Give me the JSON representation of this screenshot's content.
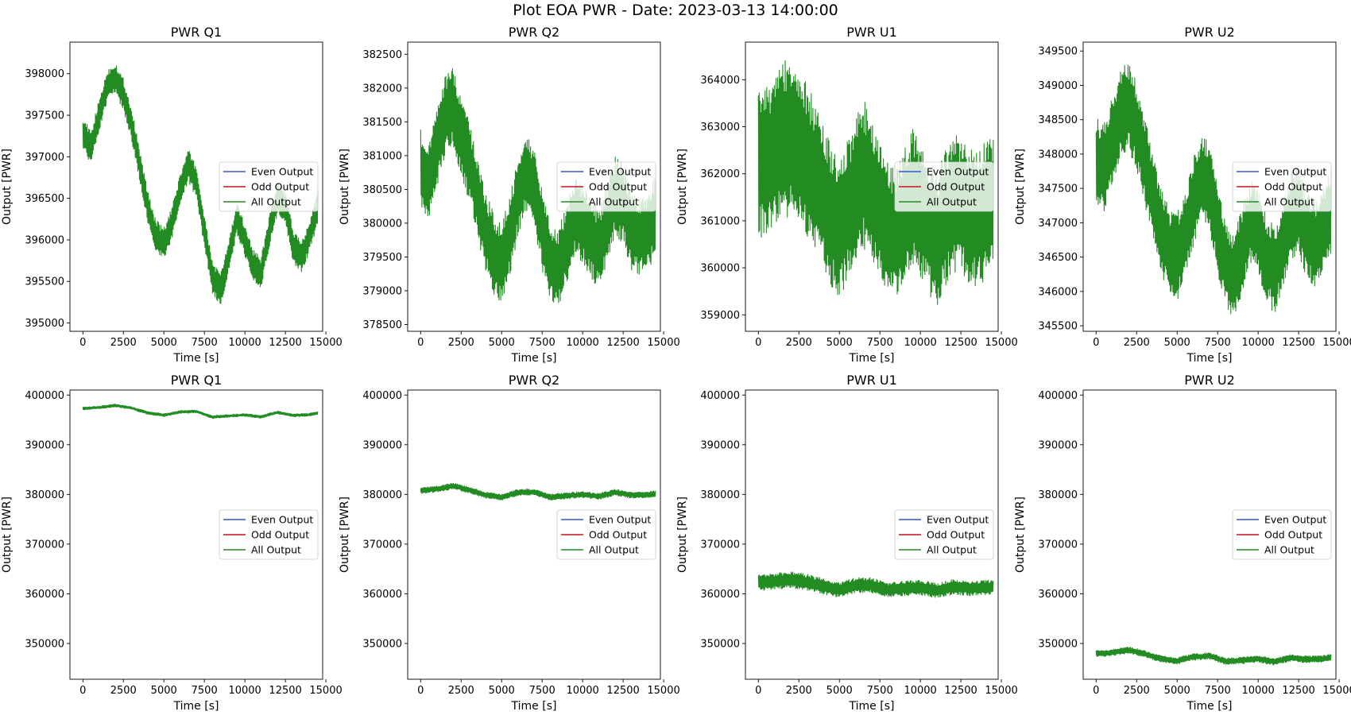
{
  "figure": {
    "title": "Plot EOA PWR - Date: 2023-03-13 14:00:00"
  },
  "colors": {
    "even": "#3355cc",
    "odd": "#cc1122",
    "all": "#228b22"
  },
  "chart_data": [
    {
      "type": "line",
      "title": "PWR Q1",
      "xlabel": "Time [s]",
      "ylabel": "Output [PWR]",
      "xlim": [
        -800,
        14800
      ],
      "ylim": [
        394900,
        398380
      ],
      "xticks": [
        0,
        2500,
        5000,
        7500,
        10000,
        12500,
        15000
      ],
      "yticks": [
        395000,
        395500,
        396000,
        396500,
        397000,
        397500,
        398000
      ],
      "legend": [
        "Even Output",
        "Odd Output",
        "All Output"
      ],
      "legend_position": "center-right",
      "grid": false,
      "band": {
        "x": [
          0,
          500,
          1000,
          1500,
          2000,
          2500,
          3000,
          3500,
          4000,
          4500,
          5000,
          5500,
          6000,
          6500,
          7000,
          7500,
          8000,
          8500,
          9000,
          9500,
          10000,
          10500,
          11000,
          11500,
          12000,
          12500,
          13000,
          13500,
          14000,
          14500
        ],
        "center": [
          397300,
          397100,
          397500,
          397850,
          397950,
          397750,
          397400,
          396900,
          396400,
          396050,
          395950,
          396200,
          396600,
          396900,
          396700,
          396100,
          395550,
          395400,
          395800,
          396250,
          396000,
          395700,
          395600,
          396100,
          396500,
          396400,
          395900,
          395800,
          396050,
          396400
        ],
        "halfwidth": [
          200,
          200,
          200,
          200,
          200,
          200,
          200,
          200,
          200,
          200,
          200,
          200,
          200,
          200,
          200,
          200,
          200,
          200,
          200,
          200,
          200,
          200,
          200,
          200,
          200,
          200,
          200,
          200,
          200,
          200
        ]
      }
    },
    {
      "type": "line",
      "title": "PWR Q2",
      "xlabel": "Time [s]",
      "ylabel": "Output [PWR]",
      "xlim": [
        -800,
        14800
      ],
      "ylim": [
        378400,
        382680
      ],
      "xticks": [
        0,
        2500,
        5000,
        7500,
        10000,
        12500,
        15000
      ],
      "yticks": [
        378500,
        379000,
        379500,
        380000,
        380500,
        381000,
        381500,
        382000,
        382500
      ],
      "legend": [
        "Even Output",
        "Odd Output",
        "All Output"
      ],
      "legend_position": "center-right",
      "grid": false,
      "band": {
        "x": [
          0,
          500,
          1000,
          1500,
          2000,
          2500,
          3000,
          3500,
          4000,
          4500,
          5000,
          5500,
          6000,
          6500,
          7000,
          7500,
          8000,
          8500,
          9000,
          9500,
          10000,
          10500,
          11000,
          11500,
          12000,
          12500,
          13000,
          13500,
          14000,
          14500
        ],
        "center": [
          380800,
          380600,
          381100,
          381600,
          381700,
          381300,
          380900,
          380400,
          379900,
          379550,
          379400,
          379800,
          380400,
          380800,
          380500,
          379900,
          379450,
          379300,
          379700,
          380100,
          380000,
          379800,
          379600,
          380000,
          380400,
          380300,
          379900,
          379800,
          379900,
          380100
        ],
        "halfwidth": [
          600,
          600,
          600,
          600,
          600,
          600,
          600,
          600,
          600,
          600,
          600,
          600,
          600,
          600,
          600,
          600,
          600,
          600,
          600,
          600,
          600,
          600,
          600,
          600,
          600,
          600,
          600,
          600,
          600,
          600
        ]
      }
    },
    {
      "type": "line",
      "title": "PWR U1",
      "xlabel": "Time [s]",
      "ylabel": "Output [PWR]",
      "xlim": [
        -800,
        14800
      ],
      "ylim": [
        358650,
        364800
      ],
      "xticks": [
        0,
        2500,
        5000,
        7500,
        10000,
        12500,
        15000
      ],
      "yticks": [
        359000,
        360000,
        361000,
        362000,
        363000,
        364000
      ],
      "legend": [
        "Even Output",
        "Odd Output",
        "All Output"
      ],
      "legend_position": "center-right",
      "grid": false,
      "band": {
        "x": [
          0,
          500,
          1000,
          1500,
          2000,
          2500,
          3000,
          3500,
          4000,
          4500,
          5000,
          5500,
          6000,
          6500,
          7000,
          7500,
          8000,
          8500,
          9000,
          9500,
          10000,
          10500,
          11000,
          11500,
          12000,
          12500,
          13000,
          13500,
          14000,
          14500
        ],
        "center": [
          362200,
          362300,
          362500,
          362700,
          362800,
          362600,
          362300,
          361900,
          361500,
          361100,
          360800,
          361200,
          361700,
          362000,
          361700,
          361200,
          360800,
          360700,
          361100,
          361500,
          361300,
          360900,
          360600,
          361000,
          361400,
          361400,
          361100,
          361000,
          361200,
          361400
        ],
        "halfwidth": [
          1600,
          1600,
          1650,
          1700,
          1750,
          1700,
          1650,
          1600,
          1550,
          1500,
          1500,
          1500,
          1550,
          1600,
          1550,
          1500,
          1450,
          1450,
          1450,
          1500,
          1500,
          1450,
          1450,
          1450,
          1500,
          1500,
          1450,
          1450,
          1500,
          1500
        ]
      }
    },
    {
      "type": "line",
      "title": "PWR U2",
      "xlabel": "Time [s]",
      "ylabel": "Output [PWR]",
      "xlim": [
        -800,
        14800
      ],
      "ylim": [
        345420,
        349630
      ],
      "xticks": [
        0,
        2500,
        5000,
        7500,
        10000,
        12500,
        15000
      ],
      "yticks": [
        345500,
        346000,
        346500,
        347000,
        347500,
        348000,
        348500,
        349000,
        349500
      ],
      "legend": [
        "Even Output",
        "Odd Output",
        "All Output"
      ],
      "legend_position": "center-right",
      "grid": false,
      "band": {
        "x": [
          0,
          500,
          1000,
          1500,
          2000,
          2500,
          3000,
          3500,
          4000,
          4500,
          5000,
          5500,
          6000,
          6500,
          7000,
          7500,
          8000,
          8500,
          9000,
          9500,
          10000,
          10500,
          11000,
          11500,
          12000,
          12500,
          13000,
          13500,
          14000,
          14500
        ],
        "center": [
          347900,
          347800,
          348200,
          348600,
          348700,
          348400,
          347900,
          347400,
          346900,
          346600,
          346500,
          346800,
          347300,
          347700,
          347500,
          346900,
          346400,
          346200,
          346600,
          347000,
          346900,
          346500,
          346300,
          346700,
          347100,
          347200,
          346800,
          346700,
          346900,
          347200
        ],
        "halfwidth": [
          650,
          650,
          650,
          650,
          650,
          650,
          650,
          650,
          650,
          650,
          650,
          650,
          650,
          650,
          650,
          650,
          650,
          650,
          650,
          650,
          650,
          650,
          650,
          650,
          650,
          650,
          650,
          650,
          650,
          650
        ]
      }
    },
    {
      "type": "line",
      "title": "PWR Q1",
      "xlabel": "Time [s]",
      "ylabel": "Output [PWR]",
      "xlim": [
        -800,
        14800
      ],
      "ylim": [
        342800,
        401000
      ],
      "xticks": [
        0,
        2500,
        5000,
        7500,
        10000,
        12500,
        15000
      ],
      "yticks": [
        350000,
        360000,
        370000,
        380000,
        390000,
        400000
      ],
      "legend": [
        "Even Output",
        "Odd Output",
        "All Output"
      ],
      "legend_position": "center-right",
      "grid": false,
      "band": {
        "x": [
          0,
          1000,
          2000,
          3000,
          4000,
          5000,
          6000,
          7000,
          8000,
          9000,
          10000,
          11000,
          12000,
          13000,
          14000,
          14500
        ],
        "center": [
          397300,
          397500,
          397900,
          397400,
          396400,
          395950,
          396600,
          396700,
          395550,
          395800,
          396000,
          395600,
          396500,
          395900,
          396050,
          396400
        ],
        "halfwidth": [
          350,
          350,
          350,
          350,
          350,
          350,
          350,
          350,
          350,
          350,
          350,
          350,
          350,
          350,
          350,
          350
        ]
      }
    },
    {
      "type": "line",
      "title": "PWR Q2",
      "xlabel": "Time [s]",
      "ylabel": "Output [PWR]",
      "xlim": [
        -800,
        14800
      ],
      "ylim": [
        342800,
        401000
      ],
      "xticks": [
        0,
        2500,
        5000,
        7500,
        10000,
        12500,
        15000
      ],
      "yticks": [
        350000,
        360000,
        370000,
        380000,
        390000,
        400000
      ],
      "legend": [
        "Even Output",
        "Odd Output",
        "All Output"
      ],
      "legend_position": "center-right",
      "grid": false,
      "band": {
        "x": [
          0,
          1000,
          2000,
          3000,
          4000,
          5000,
          6000,
          7000,
          8000,
          9000,
          10000,
          11000,
          12000,
          13000,
          14000,
          14500
        ],
        "center": [
          380800,
          381100,
          381700,
          380900,
          379900,
          379400,
          380400,
          380500,
          379450,
          379700,
          380000,
          379600,
          380400,
          379900,
          379900,
          380100
        ],
        "halfwidth": [
          700,
          700,
          700,
          700,
          700,
          700,
          700,
          700,
          700,
          700,
          700,
          700,
          700,
          700,
          700,
          700
        ]
      }
    },
    {
      "type": "line",
      "title": "PWR U1",
      "xlabel": "Time [s]",
      "ylabel": "Output [PWR]",
      "xlim": [
        -800,
        14800
      ],
      "ylim": [
        342800,
        401000
      ],
      "xticks": [
        0,
        2500,
        5000,
        7500,
        10000,
        12500,
        15000
      ],
      "yticks": [
        350000,
        360000,
        370000,
        380000,
        390000,
        400000
      ],
      "legend": [
        "Even Output",
        "Odd Output",
        "All Output"
      ],
      "legend_position": "center-right",
      "grid": false,
      "band": {
        "x": [
          0,
          1000,
          2000,
          3000,
          4000,
          5000,
          6000,
          7000,
          8000,
          9000,
          10000,
          11000,
          12000,
          13000,
          14000,
          14500
        ],
        "center": [
          362200,
          362500,
          362800,
          362300,
          361500,
          360800,
          361700,
          361700,
          360800,
          361100,
          361300,
          360600,
          361400,
          361100,
          361200,
          361400
        ],
        "halfwidth": [
          1700,
          1700,
          1750,
          1700,
          1650,
          1600,
          1650,
          1600,
          1550,
          1550,
          1600,
          1550,
          1600,
          1550,
          1600,
          1600
        ]
      }
    },
    {
      "type": "line",
      "title": "PWR U2",
      "xlabel": "Time [s]",
      "ylabel": "Output [PWR]",
      "xlim": [
        -800,
        14800
      ],
      "ylim": [
        342800,
        401000
      ],
      "xticks": [
        0,
        2500,
        5000,
        7500,
        10000,
        12500,
        15000
      ],
      "yticks": [
        350000,
        360000,
        370000,
        380000,
        390000,
        400000
      ],
      "legend": [
        "Even Output",
        "Odd Output",
        "All Output"
      ],
      "legend_position": "center-right",
      "grid": false,
      "band": {
        "x": [
          0,
          1000,
          2000,
          3000,
          4000,
          5000,
          6000,
          7000,
          8000,
          9000,
          10000,
          11000,
          12000,
          13000,
          14000,
          14500
        ],
        "center": [
          347900,
          348200,
          348700,
          347900,
          346900,
          346500,
          347300,
          347500,
          346400,
          346600,
          346900,
          346300,
          347100,
          346800,
          346900,
          347200
        ],
        "halfwidth": [
          750,
          750,
          750,
          750,
          750,
          750,
          750,
          750,
          750,
          750,
          750,
          750,
          750,
          750,
          750,
          750
        ]
      }
    }
  ]
}
